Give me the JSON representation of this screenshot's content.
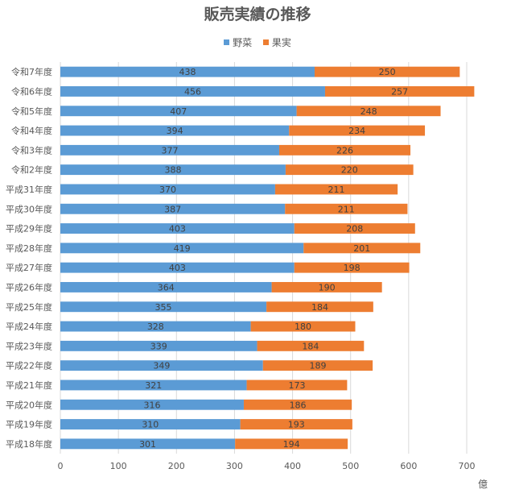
{
  "chart_data": {
    "type": "bar",
    "orientation": "horizontal",
    "stacked": true,
    "title": "販売実績の推移",
    "unit": "億",
    "categories": [
      "令和7年度",
      "令和6年度",
      "令和5年度",
      "令和4年度",
      "令和3年度",
      "令和2年度",
      "平成31年度",
      "平成30年度",
      "平成29年度",
      "平成28年度",
      "平成27年度",
      "平成26年度",
      "平成25年度",
      "平成24年度",
      "平成23年度",
      "平成22年度",
      "平成21年度",
      "平成20年度",
      "平成19年度",
      "平成18年度"
    ],
    "series": [
      {
        "name": "野菜",
        "color": "#5b9bd5",
        "values": [
          438,
          456,
          407,
          394,
          377,
          388,
          370,
          387,
          403,
          419,
          403,
          364,
          355,
          328,
          339,
          349,
          321,
          316,
          310,
          301
        ]
      },
      {
        "name": "果実",
        "color": "#ed7d31",
        "values": [
          250,
          257,
          248,
          234,
          226,
          220,
          211,
          211,
          208,
          201,
          198,
          190,
          184,
          180,
          184,
          189,
          173,
          186,
          193,
          194
        ]
      }
    ],
    "xlim": [
      0,
      700
    ],
    "xticks": [
      0,
      100,
      200,
      300,
      400,
      500,
      600,
      700
    ],
    "grid": true,
    "legend_position": "top",
    "data_labels": true
  }
}
